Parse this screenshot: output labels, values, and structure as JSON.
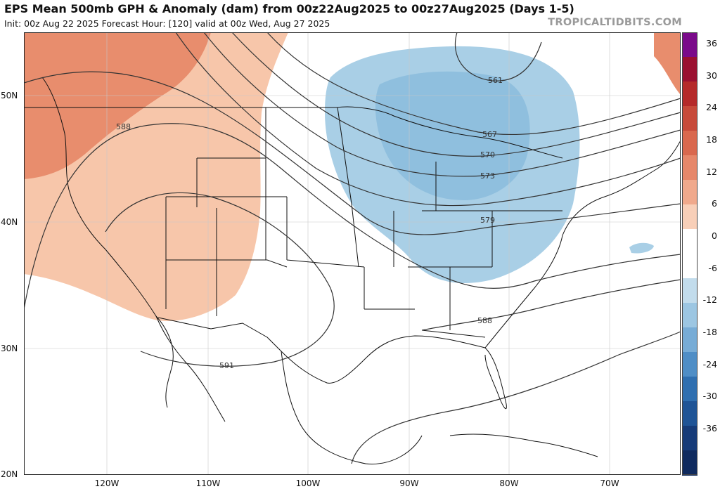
{
  "header": {
    "title": "EPS Mean 500mb GPH & Anomaly (dam) from 00z22Aug2025 to 00z27Aug2025 (Days 1-5)",
    "subtitle": "Init: 00z Aug 22 2025   Forecast Hour: [120]   valid at 00z Wed, Aug 27 2025",
    "brand": "TROPICALTIDBITS.COM"
  },
  "axes": {
    "lat_labels": [
      "50N",
      "40N",
      "30N",
      "20N"
    ],
    "lon_labels": [
      "120W",
      "110W",
      "100W",
      "90W",
      "80W",
      "70W"
    ]
  },
  "contours": {
    "labels": [
      "561",
      "567",
      "570",
      "573",
      "579",
      "588",
      "588",
      "591"
    ],
    "line_color": "#333333"
  },
  "colorbar": {
    "ticks": [
      "36",
      "30",
      "24",
      "18",
      "12",
      "6",
      "0",
      "-6",
      "-12",
      "-18",
      "-24",
      "-30",
      "-36"
    ],
    "colors": [
      "#7a0a8a",
      "#9a1030",
      "#b52a2a",
      "#c74a3a",
      "#d9684e",
      "#e6876a",
      "#f0a98c",
      "#f8cfb8",
      "#ffffff",
      "#ffffff",
      "#c2dcec",
      "#9cc6e2",
      "#77acd6",
      "#4f8ec6",
      "#2f6fb0",
      "#1f5496",
      "#163b78",
      "#0f2a5e"
    ]
  },
  "anomaly": {
    "warm_color": "#f7c6aa",
    "warm_strong_color": "#e88d6d",
    "cool_color": "#a9cfe6",
    "cool_core_color": "#8fbfde"
  }
}
